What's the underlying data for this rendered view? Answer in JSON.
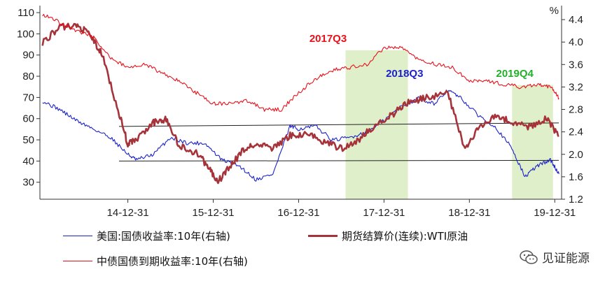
{
  "chart_data": {
    "type": "line",
    "title": "",
    "left_axis": {
      "ticks": [
        30,
        40,
        50,
        60,
        70,
        80,
        90,
        100,
        110
      ],
      "range": [
        22,
        112
      ]
    },
    "right_axis": {
      "unit": "%",
      "ticks": [
        "1.2",
        "1.6",
        "2.0",
        "2.4",
        "2.8",
        "3.2",
        "3.6",
        "4.0",
        "4.4"
      ],
      "range": [
        1.2,
        4.6
      ]
    },
    "x_axis": {
      "tick_labels": [
        "14-12-31",
        "15-12-31",
        "16-12-31",
        "17-12-31",
        "18-12-31",
        "19-12-31"
      ]
    },
    "reference_lines_left": [
      57,
      40
    ],
    "highlight_regions": [
      {
        "label": "2017Q3",
        "label_color": "#e8101a",
        "from": 2017.55,
        "to": 2018.28
      },
      {
        "label": "2018Q3",
        "label_color": "#1b22cc",
        "from": null,
        "to": null
      },
      {
        "label": "2019Q4",
        "label_color": "#22b02a",
        "from": 2019.5,
        "to": 2019.98
      }
    ],
    "series": [
      {
        "name": "美国:国债收益率:10年(右轴)",
        "color": "#1b22cc",
        "axis": "right",
        "x": [
          2014.0,
          2014.2,
          2014.4,
          2014.6,
          2014.8,
          2015.0,
          2015.1,
          2015.3,
          2015.5,
          2015.7,
          2015.9,
          2016.1,
          2016.3,
          2016.5,
          2016.7,
          2016.9,
          2017.0,
          2017.2,
          2017.4,
          2017.6,
          2017.8,
          2018.0,
          2018.2,
          2018.4,
          2018.6,
          2018.75,
          2018.9,
          2019.1,
          2019.3,
          2019.5,
          2019.65,
          2019.8,
          2019.95,
          2020.05
        ],
        "y": [
          2.95,
          2.8,
          2.6,
          2.45,
          2.3,
          2.0,
          1.9,
          2.0,
          2.3,
          2.2,
          2.2,
          1.9,
          1.8,
          1.55,
          1.65,
          2.5,
          2.45,
          2.5,
          2.25,
          2.3,
          2.4,
          2.6,
          2.85,
          3.0,
          2.9,
          3.15,
          3.0,
          2.7,
          2.5,
          2.1,
          1.6,
          1.8,
          1.9,
          1.65
        ]
      },
      {
        "name": "期货结算价(连续):WTI原油",
        "color": "#a6323a",
        "axis": "left",
        "x": [
          2014.0,
          2014.2,
          2014.4,
          2014.55,
          2014.7,
          2014.9,
          2015.0,
          2015.1,
          2015.3,
          2015.45,
          2015.6,
          2015.8,
          2015.95,
          2016.05,
          2016.15,
          2016.35,
          2016.5,
          2016.7,
          2016.9,
          2017.1,
          2017.3,
          2017.5,
          2017.7,
          2017.9,
          2018.1,
          2018.3,
          2018.5,
          2018.75,
          2018.95,
          2019.1,
          2019.3,
          2019.5,
          2019.7,
          2019.9,
          2020.05
        ],
        "y": [
          96,
          103,
          104,
          100,
          90,
          62,
          48,
          50,
          58,
          60,
          47,
          44,
          37,
          30,
          35,
          45,
          48,
          46,
          52,
          53,
          49,
          46,
          50,
          57,
          62,
          68,
          70,
          72,
          45,
          55,
          62,
          58,
          56,
          60,
          52
        ]
      },
      {
        "name": "中债国债到期收益率:10年(右轴)",
        "color": "#e8101a",
        "axis": "right",
        "x": [
          2014.0,
          2014.2,
          2014.4,
          2014.6,
          2014.8,
          2015.0,
          2015.2,
          2015.4,
          2015.6,
          2015.8,
          2016.0,
          2016.2,
          2016.4,
          2016.6,
          2016.8,
          2017.0,
          2017.2,
          2017.4,
          2017.6,
          2017.8,
          2018.0,
          2018.2,
          2018.4,
          2018.6,
          2018.8,
          2019.0,
          2019.2,
          2019.4,
          2019.6,
          2019.8,
          2019.95,
          2020.05
        ],
        "y": [
          4.5,
          4.35,
          4.2,
          4.1,
          3.7,
          3.55,
          3.6,
          3.45,
          3.3,
          3.1,
          2.9,
          2.9,
          2.95,
          2.8,
          2.8,
          3.1,
          3.35,
          3.5,
          3.55,
          3.6,
          3.9,
          3.9,
          3.7,
          3.6,
          3.55,
          3.3,
          3.3,
          3.25,
          3.2,
          3.25,
          3.2,
          3.0
        ]
      }
    ]
  },
  "legend": {
    "us": "美国:国债收益率:10年(右轴)",
    "wti": "期货结算价(连续):WTI原油",
    "cn": "中债国债到期收益率:10年(右轴)"
  },
  "watermark": {
    "text": "见证能源"
  }
}
